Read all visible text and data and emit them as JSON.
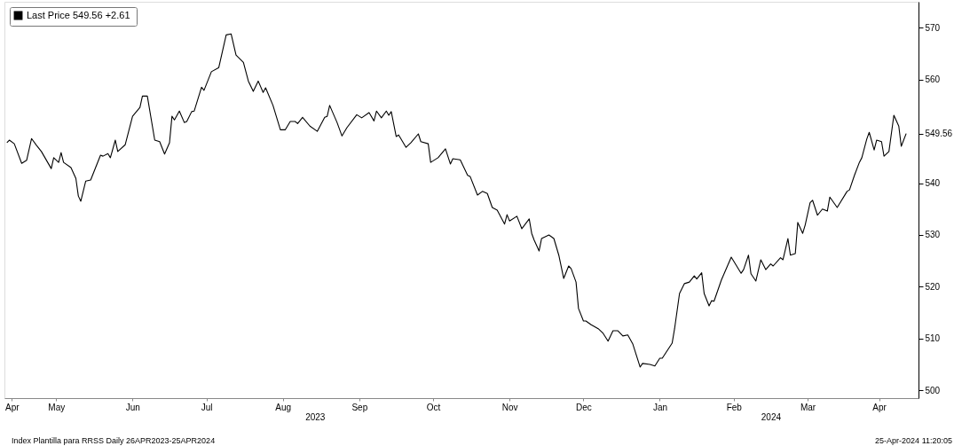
{
  "chart_data": {
    "type": "line",
    "legend": "top left",
    "grid": false,
    "xlim": [
      "2023-04-25",
      "2024-04-30"
    ],
    "xticks": [
      {
        "value": "2023-04-28",
        "label": "Apr"
      },
      {
        "value": "2023-05-16",
        "label": "May"
      },
      {
        "value": "2023-06-16",
        "label": "Jun"
      },
      {
        "value": "2023-07-16",
        "label": "Jul"
      },
      {
        "value": "2023-08-16",
        "label": "Aug"
      },
      {
        "value": "2023-09-16",
        "label": "Sep"
      },
      {
        "value": "2023-10-16",
        "label": "Oct"
      },
      {
        "value": "2023-11-16",
        "label": "Nov"
      },
      {
        "value": "2023-12-16",
        "label": "Dec"
      },
      {
        "value": "2024-01-16",
        "label": "Jan"
      },
      {
        "value": "2024-02-15",
        "label": "Feb"
      },
      {
        "value": "2024-03-16",
        "label": "Mar"
      },
      {
        "value": "2024-04-14",
        "label": "Apr"
      }
    ],
    "x2lim": [
      "2023-04-25",
      "2024-04-30"
    ],
    "x2ticks": [
      {
        "value": "2023-08-29",
        "label": "2023"
      },
      {
        "value": "2024-03-01",
        "label": "2024"
      }
    ],
    "ylim": [
      498.5,
      575
    ],
    "yticks": [
      500,
      510,
      520,
      530,
      540,
      549.56,
      560,
      570
    ],
    "annotations": [
      "Index Plantilla para RRSS  Daily 26APR2023-25APR2024",
      "25-Apr-2024 11:20:05"
    ],
    "series": [
      {
        "name": "Last Price 549.56  +2.61",
        "color": "#000000",
        "x": [
          "2023-04-26",
          "2023-04-27",
          "2023-04-29",
          "2023-05-02",
          "2023-05-04",
          "2023-05-06",
          "2023-05-08",
          "2023-05-10",
          "2023-05-14",
          "2023-05-15",
          "2023-05-17",
          "2023-05-18",
          "2023-05-19",
          "2023-05-22",
          "2023-05-24",
          "2023-05-25",
          "2023-05-26",
          "2023-05-28",
          "2023-05-30",
          "2023-06-03",
          "2023-06-04",
          "2023-06-06",
          "2023-06-07",
          "2023-06-09",
          "2023-06-10",
          "2023-06-13",
          "2023-06-16",
          "2023-06-19",
          "2023-06-20",
          "2023-06-22",
          "2023-06-25",
          "2023-06-27",
          "2023-06-29",
          "2023-07-01",
          "2023-07-02",
          "2023-07-03",
          "2023-07-05",
          "2023-07-07",
          "2023-07-08",
          "2023-07-10",
          "2023-07-11",
          "2023-07-14",
          "2023-07-15",
          "2023-07-18",
          "2023-07-21",
          "2023-07-24",
          "2023-07-26",
          "2023-07-28",
          "2023-07-31",
          "2023-08-02",
          "2023-08-04",
          "2023-08-06",
          "2023-08-08",
          "2023-08-09",
          "2023-08-12",
          "2023-08-15",
          "2023-08-17",
          "2023-08-19",
          "2023-08-21",
          "2023-08-22",
          "2023-08-24",
          "2023-08-27",
          "2023-08-30",
          "2023-09-02",
          "2023-09-03",
          "2023-09-04",
          "2023-09-07",
          "2023-09-09",
          "2023-09-11",
          "2023-09-15",
          "2023-09-17",
          "2023-09-20",
          "2023-09-22",
          "2023-09-23",
          "2023-09-25",
          "2023-09-27",
          "2023-09-28",
          "2023-09-29",
          "2023-10-01",
          "2023-10-02",
          "2023-10-05",
          "2023-10-07",
          "2023-10-10",
          "2023-10-11",
          "2023-10-14",
          "2023-10-15",
          "2023-10-18",
          "2023-10-21",
          "2023-10-23",
          "2023-10-24",
          "2023-10-27",
          "2023-10-30",
          "2023-10-31",
          "2023-11-03",
          "2023-11-05",
          "2023-11-07",
          "2023-11-09",
          "2023-11-11",
          "2023-11-14",
          "2023-11-15",
          "2023-11-16",
          "2023-11-19",
          "2023-11-21",
          "2023-11-24",
          "2023-11-25",
          "2023-11-26",
          "2023-11-28",
          "2023-11-29",
          "2023-12-02",
          "2023-12-04",
          "2023-12-06",
          "2023-12-08",
          "2023-12-10",
          "2023-12-11",
          "2023-12-13",
          "2023-12-14",
          "2023-12-16",
          "2023-12-17",
          "2023-12-19",
          "2023-12-22",
          "2023-12-24",
          "2023-12-26",
          "2023-12-28",
          "2023-12-30",
          "2024-01-01",
          "2024-01-03",
          "2024-01-05",
          "2024-01-08",
          "2024-01-09",
          "2024-01-12",
          "2024-01-14",
          "2024-01-16",
          "2024-01-17",
          "2024-01-21",
          "2024-01-22",
          "2024-01-24",
          "2024-01-26",
          "2024-01-28",
          "2024-01-30",
          "2024-01-31",
          "2024-02-02",
          "2024-02-03",
          "2024-02-05",
          "2024-02-06",
          "2024-02-07",
          "2024-02-10",
          "2024-02-14",
          "2024-02-18",
          "2024-02-19",
          "2024-02-21",
          "2024-02-22",
          "2024-02-24",
          "2024-02-26",
          "2024-02-28",
          "2024-03-01",
          "2024-03-02",
          "2024-03-05",
          "2024-03-06",
          "2024-03-08",
          "2024-03-09",
          "2024-03-11",
          "2024-03-12",
          "2024-03-14",
          "2024-03-15",
          "2024-03-17",
          "2024-03-18",
          "2024-03-20",
          "2024-03-22",
          "2024-03-24",
          "2024-03-25",
          "2024-03-28",
          "2024-04-01",
          "2024-04-02",
          "2024-04-04",
          "2024-04-06",
          "2024-04-07",
          "2024-04-09",
          "2024-04-10",
          "2024-04-12",
          "2024-04-13",
          "2024-04-15",
          "2024-04-16",
          "2024-04-18",
          "2024-04-20",
          "2024-04-22",
          "2024-04-23",
          "2024-04-25"
        ],
        "values": [
          547.8,
          548.3,
          547.6,
          543.8,
          544.4,
          548.6,
          547.3,
          546.1,
          542.8,
          544.9,
          544.0,
          545.9,
          544.0,
          543.0,
          540.9,
          537.5,
          536.5,
          540.4,
          540.6,
          545.4,
          545.2,
          545.7,
          544.9,
          548.3,
          546.1,
          547.4,
          552.9,
          554.6,
          556.8,
          556.8,
          548.3,
          548.0,
          545.6,
          547.8,
          552.9,
          552.2,
          553.9,
          551.7,
          551.9,
          553.8,
          553.9,
          558.5,
          557.9,
          561.5,
          562.3,
          568.6,
          568.8,
          564.7,
          563.3,
          559.7,
          557.7,
          559.7,
          557.5,
          558.4,
          555.0,
          550.3,
          550.3,
          551.9,
          551.9,
          551.5,
          552.7,
          551.0,
          550.0,
          552.7,
          552.9,
          555.0,
          551.7,
          549.1,
          550.7,
          553.2,
          552.6,
          553.6,
          552.0,
          553.9,
          552.6,
          553.9,
          553.1,
          553.8,
          549.0,
          549.3,
          546.9,
          547.8,
          549.5,
          548.0,
          547.6,
          544.0,
          544.9,
          546.6,
          543.7,
          544.7,
          544.5,
          541.5,
          541.3,
          537.7,
          538.4,
          538.0,
          535.3,
          534.8,
          532.1,
          533.9,
          532.7,
          533.6,
          531.2,
          533.1,
          530.3,
          529.0,
          526.9,
          529.3,
          530.0,
          529.3,
          526.1,
          521.6,
          524.0,
          523.5,
          520.9,
          515.8,
          513.4,
          513.4,
          512.7,
          511.9,
          511.0,
          509.5,
          511.5,
          511.5,
          510.5,
          510.7,
          509.0,
          504.5,
          505.2,
          505.0,
          504.7,
          506.2,
          506.2,
          509.1,
          511.9,
          518.7,
          520.6,
          520.9,
          522.1,
          521.5,
          522.7,
          518.7,
          516.3,
          517.3,
          517.2,
          521.3,
          525.7,
          522.6,
          523.3,
          526.1,
          522.5,
          521.1,
          525.2,
          523.3,
          524.4,
          524.0,
          525.6,
          525.2,
          529.3,
          526.1,
          526.4,
          532.4,
          530.3,
          531.9,
          536.2,
          536.7,
          533.8,
          535.0,
          534.6,
          537.3,
          535.3,
          538.4,
          538.7,
          541.5,
          544.0,
          544.9,
          548.5,
          549.8,
          546.4,
          548.3,
          548.0,
          545.2,
          546.1,
          553.1,
          551.0,
          547.1,
          549.56
        ]
      }
    ]
  }
}
